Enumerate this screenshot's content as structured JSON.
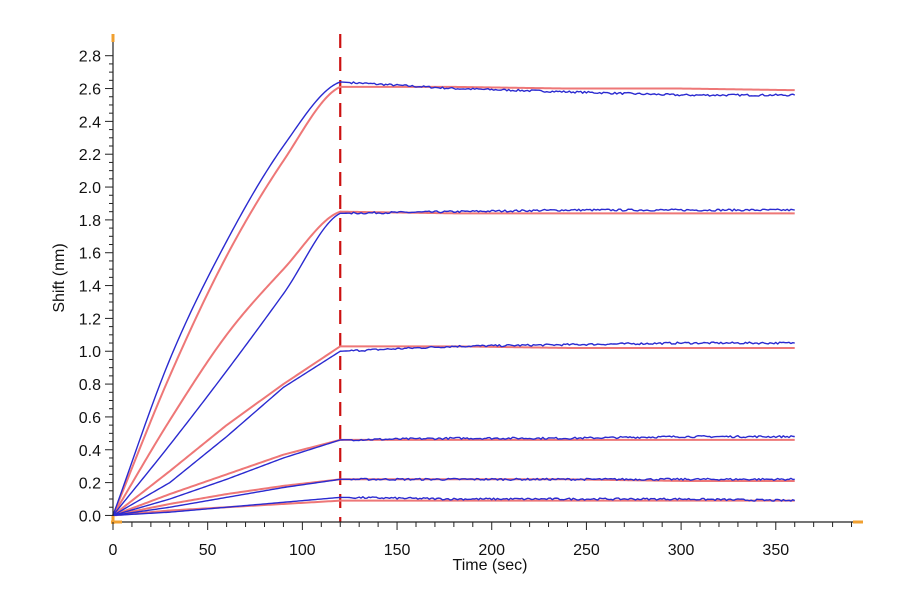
{
  "chart_data": {
    "type": "line",
    "title": "",
    "xlabel": "Time (sec)",
    "ylabel": "Shift (nm)",
    "xlim": [
      0,
      395
    ],
    "ylim": [
      -0.04,
      2.92
    ],
    "xticks": [
      0,
      50,
      100,
      150,
      200,
      250,
      300,
      350
    ],
    "yticks": [
      0.0,
      0.2,
      0.4,
      0.6,
      0.8,
      1.0,
      1.2,
      1.4,
      1.6,
      1.8,
      2.0,
      2.2,
      2.4,
      2.6,
      2.8
    ],
    "dissociation_start": 120,
    "end_time": 360,
    "grid": false,
    "colors": {
      "measured": "#2a2ad0",
      "fit": "#ee7777",
      "marker": "#cc1111",
      "axis_accent": "#f0a030"
    },
    "series": [
      {
        "type": "measured",
        "shape": "curved",
        "values": [
          [
            0,
            0
          ],
          [
            30,
            0.95
          ],
          [
            60,
            1.67
          ],
          [
            90,
            2.25
          ],
          [
            120,
            2.64
          ],
          [
            180,
            2.6
          ],
          [
            240,
            2.58
          ],
          [
            300,
            2.56
          ],
          [
            360,
            2.56
          ]
        ]
      },
      {
        "type": "fit",
        "shape": "curved",
        "values": [
          [
            0,
            0
          ],
          [
            30,
            0.85
          ],
          [
            60,
            1.58
          ],
          [
            90,
            2.16
          ],
          [
            120,
            2.61
          ],
          [
            180,
            2.61
          ],
          [
            240,
            2.6
          ],
          [
            300,
            2.6
          ],
          [
            360,
            2.59
          ]
        ]
      },
      {
        "type": "measured",
        "shape": "curved",
        "values": [
          [
            0,
            0
          ],
          [
            30,
            0.43
          ],
          [
            60,
            0.88
          ],
          [
            90,
            1.35
          ],
          [
            120,
            1.84
          ],
          [
            180,
            1.85
          ],
          [
            240,
            1.86
          ],
          [
            300,
            1.86
          ],
          [
            360,
            1.86
          ]
        ]
      },
      {
        "type": "fit",
        "shape": "curved",
        "values": [
          [
            0,
            0
          ],
          [
            30,
            0.58
          ],
          [
            60,
            1.1
          ],
          [
            90,
            1.5
          ],
          [
            120,
            1.85
          ],
          [
            180,
            1.84
          ],
          [
            240,
            1.84
          ],
          [
            300,
            1.84
          ],
          [
            360,
            1.84
          ]
        ]
      },
      {
        "type": "measured",
        "shape": "linear",
        "values": [
          [
            0,
            0
          ],
          [
            30,
            0.2
          ],
          [
            60,
            0.48
          ],
          [
            90,
            0.78
          ],
          [
            120,
            1.0
          ],
          [
            180,
            1.03
          ],
          [
            240,
            1.04
          ],
          [
            300,
            1.05
          ],
          [
            360,
            1.05
          ]
        ]
      },
      {
        "type": "fit",
        "shape": "linear",
        "values": [
          [
            0,
            0
          ],
          [
            30,
            0.27
          ],
          [
            60,
            0.55
          ],
          [
            90,
            0.8
          ],
          [
            120,
            1.03
          ],
          [
            180,
            1.03
          ],
          [
            240,
            1.02
          ],
          [
            300,
            1.02
          ],
          [
            360,
            1.02
          ]
        ]
      },
      {
        "type": "measured",
        "shape": "linear",
        "values": [
          [
            0,
            0
          ],
          [
            30,
            0.1
          ],
          [
            60,
            0.22
          ],
          [
            90,
            0.35
          ],
          [
            120,
            0.46
          ],
          [
            180,
            0.47
          ],
          [
            240,
            0.47
          ],
          [
            300,
            0.48
          ],
          [
            360,
            0.48
          ]
        ]
      },
      {
        "type": "fit",
        "shape": "linear",
        "values": [
          [
            0,
            0
          ],
          [
            30,
            0.13
          ],
          [
            60,
            0.25
          ],
          [
            90,
            0.37
          ],
          [
            120,
            0.46
          ],
          [
            180,
            0.46
          ],
          [
            240,
            0.46
          ],
          [
            300,
            0.46
          ],
          [
            360,
            0.46
          ]
        ]
      },
      {
        "type": "measured",
        "shape": "linear",
        "values": [
          [
            0,
            0
          ],
          [
            30,
            0.05
          ],
          [
            60,
            0.11
          ],
          [
            90,
            0.17
          ],
          [
            120,
            0.22
          ],
          [
            180,
            0.22
          ],
          [
            240,
            0.22
          ],
          [
            300,
            0.22
          ],
          [
            360,
            0.22
          ]
        ]
      },
      {
        "type": "fit",
        "shape": "linear",
        "values": [
          [
            0,
            0
          ],
          [
            30,
            0.07
          ],
          [
            60,
            0.13
          ],
          [
            90,
            0.18
          ],
          [
            120,
            0.22
          ],
          [
            180,
            0.22
          ],
          [
            240,
            0.22
          ],
          [
            300,
            0.21
          ],
          [
            360,
            0.21
          ]
        ]
      },
      {
        "type": "measured",
        "shape": "linear",
        "values": [
          [
            0,
            0
          ],
          [
            30,
            0.02
          ],
          [
            60,
            0.05
          ],
          [
            90,
            0.08
          ],
          [
            120,
            0.11
          ],
          [
            180,
            0.1
          ],
          [
            240,
            0.1
          ],
          [
            300,
            0.1
          ],
          [
            360,
            0.09
          ]
        ]
      },
      {
        "type": "fit",
        "shape": "linear",
        "values": [
          [
            0,
            0
          ],
          [
            30,
            0.03
          ],
          [
            60,
            0.05
          ],
          [
            90,
            0.07
          ],
          [
            120,
            0.09
          ],
          [
            180,
            0.09
          ],
          [
            240,
            0.09
          ],
          [
            300,
            0.09
          ],
          [
            360,
            0.09
          ]
        ]
      }
    ]
  }
}
